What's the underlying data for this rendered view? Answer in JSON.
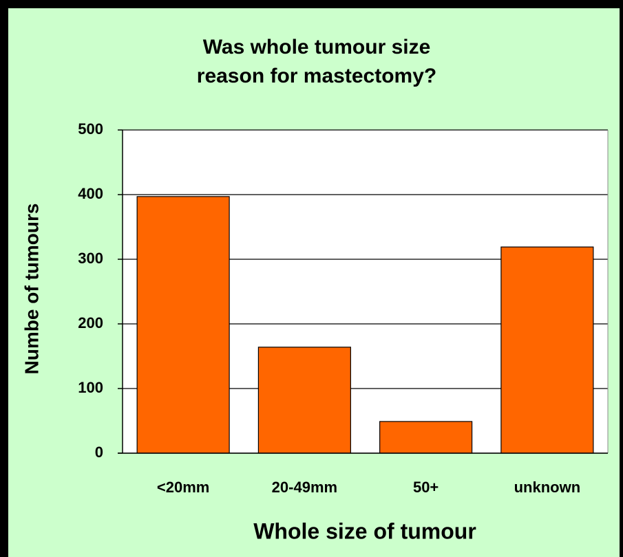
{
  "chart_data": {
    "type": "bar",
    "title": [
      "Was whole tumour size",
      "reason for mastectomy?"
    ],
    "x_label": "Whole size of tumour",
    "y_label": "Numbe of tumours",
    "categories": [
      "<20mm",
      "20-49mm",
      "50+",
      "unknown"
    ],
    "values": [
      397,
      164,
      49,
      319
    ],
    "color": "#ff6600",
    "ylim": [
      0,
      500
    ],
    "yticks": [
      0,
      100,
      200,
      300,
      400,
      500
    ],
    "grid": true
  }
}
